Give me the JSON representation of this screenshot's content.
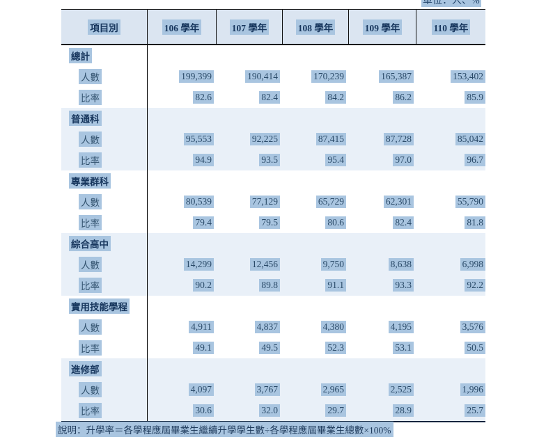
{
  "page": {
    "unit_label": "單位：人、%",
    "footnote": "說明：升學率＝各學程應屆畢業生繼續升學學生數÷各學程應屆畢業生總數×100%"
  },
  "table": {
    "header": [
      "項目別",
      "106 學年",
      "107 學年",
      "108 學年",
      "109 學年",
      "110 學年"
    ],
    "row_labels": {
      "count": "人數",
      "rate": "比率"
    },
    "sections": [
      {
        "title": "總計",
        "count": [
          "199,399",
          "190,414",
          "170,239",
          "165,387",
          "153,402"
        ],
        "rate": [
          "82.6",
          "82.4",
          "84.2",
          "86.2",
          "85.9"
        ]
      },
      {
        "title": "普通科",
        "count": [
          "95,553",
          "92,225",
          "87,415",
          "87,728",
          "85,042"
        ],
        "rate": [
          "94.9",
          "93.5",
          "95.4",
          "97.0",
          "96.7"
        ]
      },
      {
        "title": "專業群科",
        "count": [
          "80,539",
          "77,129",
          "65,729",
          "62,301",
          "55,790"
        ],
        "rate": [
          "79.4",
          "79.5",
          "80.6",
          "82.4",
          "81.8"
        ]
      },
      {
        "title": "綜合高中",
        "count": [
          "14,299",
          "12,456",
          "9,750",
          "8,638",
          "6,998"
        ],
        "rate": [
          "90.2",
          "89.8",
          "91.1",
          "93.3",
          "92.2"
        ]
      },
      {
        "title": "實用技能學程",
        "count": [
          "4,911",
          "4,837",
          "4,380",
          "4,195",
          "3,576"
        ],
        "rate": [
          "49.1",
          "49.5",
          "52.3",
          "53.1",
          "50.5"
        ]
      },
      {
        "title": "進修部",
        "count": [
          "4,097",
          "3,767",
          "2,965",
          "2,525",
          "1,996"
        ],
        "rate": [
          "30.6",
          "32.0",
          "29.7",
          "28.9",
          "25.7"
        ]
      }
    ]
  },
  "colors": {
    "header_bg": "#dbe5f1",
    "band_bg": "#e9f0f8",
    "selection_highlight": "#a9c5e0",
    "text_dark": "#17365d",
    "rule_dark": "#10243e"
  }
}
